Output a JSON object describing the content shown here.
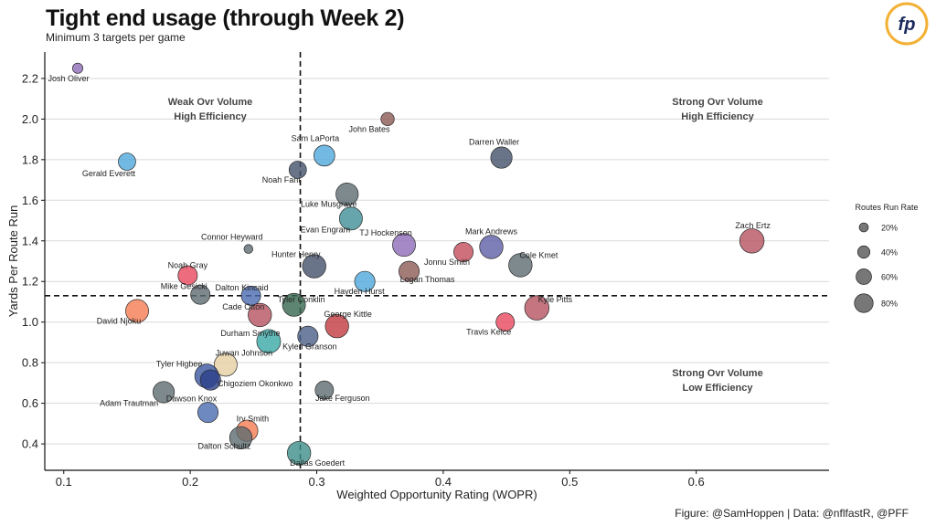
{
  "title": "Tight end usage (through Week 2)",
  "subtitle": "Minimum 3 targets per game",
  "credit": "Figure: @SamHoppen | Data: @nflfastR, @PFF",
  "logo_text": "fp",
  "colors": {
    "logo_ring": "#f2b134",
    "logo_text": "#1b2a5c",
    "grid": "#d9d9d9",
    "axis": "#111111"
  },
  "chart_data": {
    "type": "scatter",
    "xlabel": "Weighted Opportunity Rating (WOPR)",
    "ylabel": "Yards Per Route Run",
    "xlim": [
      0.085,
      0.705
    ],
    "ylim": [
      0.27,
      2.33
    ],
    "xticks": [
      0.1,
      0.2,
      0.3,
      0.4,
      0.5,
      0.6
    ],
    "xtick_labels": [
      "0.1",
      "0.2",
      "0.3",
      "0.4",
      "0.5",
      "0.6"
    ],
    "yticks": [
      0.4,
      0.6,
      0.8,
      1.0,
      1.2,
      1.4,
      1.6,
      1.8,
      2.0,
      2.2
    ],
    "ytick_labels": [
      "0.4",
      "0.6",
      "0.8",
      "1.0",
      "1.2",
      "1.4",
      "1.6",
      "1.8",
      "2.0",
      "2.2"
    ],
    "grid": "horizontal",
    "ref_x": 0.287,
    "ref_y": 1.13,
    "quadrants": [
      {
        "lines": [
          "Weak Ovr Volume",
          "High Efficiency"
        ],
        "position": "top-left"
      },
      {
        "lines": [
          "Strong Ovr Volume",
          "High Efficiency"
        ],
        "position": "top-right"
      },
      {
        "lines": [
          "Strong Ovr Volume",
          "Low Efficiency"
        ],
        "position": "bottom-right"
      }
    ],
    "legend": {
      "title": "Routes Run Rate",
      "position": "right",
      "values": [
        0.2,
        0.4,
        0.6,
        0.8
      ],
      "labels": [
        "20%",
        "40%",
        "60%",
        "80%"
      ]
    },
    "points": [
      {
        "name": "Josh Oliver",
        "x": 0.111,
        "y": 2.25,
        "rr": 0.15,
        "color": "#8e6bb8"
      },
      {
        "name": "Gerald Everett",
        "x": 0.15,
        "y": 1.79,
        "rr": 0.5,
        "color": "#4fa8dc"
      },
      {
        "name": "John Bates",
        "x": 0.356,
        "y": 2.0,
        "rr": 0.3,
        "color": "#8c5a55"
      },
      {
        "name": "Sam LaPorta",
        "x": 0.306,
        "y": 1.82,
        "rr": 0.68,
        "color": "#4fa8dc"
      },
      {
        "name": "Noah Fant",
        "x": 0.285,
        "y": 1.75,
        "rr": 0.5,
        "color": "#44516b"
      },
      {
        "name": "Darren Waller",
        "x": 0.446,
        "y": 1.81,
        "rr": 0.7,
        "color": "#44516b"
      },
      {
        "name": "Luke Musgrave",
        "x": 0.324,
        "y": 1.63,
        "rr": 0.75,
        "color": "#5e6b70"
      },
      {
        "name": "Evan Engram",
        "x": 0.327,
        "y": 1.51,
        "rr": 0.78,
        "color": "#3f8e96"
      },
      {
        "name": "Connor Heyward",
        "x": 0.246,
        "y": 1.36,
        "rr": 0.08,
        "color": "#5e6b70"
      },
      {
        "name": "TJ Hockenson",
        "x": 0.369,
        "y": 1.38,
        "rr": 0.78,
        "color": "#8e6bb8"
      },
      {
        "name": "Mark Andrews",
        "x": 0.438,
        "y": 1.37,
        "rr": 0.8,
        "color": "#5e5ea8"
      },
      {
        "name": "Zach Ertz",
        "x": 0.644,
        "y": 1.4,
        "rr": 0.85,
        "color": "#b5535f"
      },
      {
        "name": "Jonnu Smith",
        "x": 0.416,
        "y": 1.345,
        "rr": 0.6,
        "color": "#c44c5c"
      },
      {
        "name": "Cole Kmet",
        "x": 0.461,
        "y": 1.28,
        "rr": 0.8,
        "color": "#5e6b70"
      },
      {
        "name": "Hunter Henry",
        "x": 0.298,
        "y": 1.275,
        "rr": 0.8,
        "color": "#44516b"
      },
      {
        "name": "Logan Thomas",
        "x": 0.373,
        "y": 1.25,
        "rr": 0.65,
        "color": "#8c5a55"
      },
      {
        "name": "Noah Gray",
        "x": 0.198,
        "y": 1.23,
        "rr": 0.6,
        "color": "#e8495e"
      },
      {
        "name": "Hayden Hurst",
        "x": 0.338,
        "y": 1.2,
        "rr": 0.65,
        "color": "#4fa8dc"
      },
      {
        "name": "Mike Gesicki",
        "x": 0.208,
        "y": 1.135,
        "rr": 0.6,
        "color": "#5e6b70"
      },
      {
        "name": "Dalton Kincaid",
        "x": 0.248,
        "y": 1.13,
        "rr": 0.6,
        "color": "#4a6ab0"
      },
      {
        "name": "Tyler Conklin",
        "x": 0.282,
        "y": 1.085,
        "rr": 0.78,
        "color": "#35664e"
      },
      {
        "name": "Kyle Pitts",
        "x": 0.474,
        "y": 1.07,
        "rr": 0.85,
        "color": "#b5535f"
      },
      {
        "name": "David Njoku",
        "x": 0.158,
        "y": 1.055,
        "rr": 0.78,
        "color": "#f47c51"
      },
      {
        "name": "Cade Otton",
        "x": 0.255,
        "y": 1.035,
        "rr": 0.8,
        "color": "#b5535f"
      },
      {
        "name": "Travis Kelce",
        "x": 0.449,
        "y": 1.0,
        "rr": 0.55,
        "color": "#e8495e"
      },
      {
        "name": "George Kittle",
        "x": 0.316,
        "y": 0.98,
        "rr": 0.8,
        "color": "#c0393f"
      },
      {
        "name": "Kylen Granson",
        "x": 0.293,
        "y": 0.93,
        "rr": 0.65,
        "color": "#4a5f88"
      },
      {
        "name": "Durham Smythe",
        "x": 0.262,
        "y": 0.905,
        "rr": 0.82,
        "color": "#3aa8a6"
      },
      {
        "name": "Juwan Johnson",
        "x": 0.228,
        "y": 0.79,
        "rr": 0.78,
        "color": "#e6cfa3"
      },
      {
        "name": "Tyler Higbee",
        "x": 0.213,
        "y": 0.735,
        "rr": 0.82,
        "color": "#3a56a0"
      },
      {
        "name": "Chigoziem Okonkwo",
        "x": 0.216,
        "y": 0.715,
        "rr": 0.65,
        "color": "#2a3f88"
      },
      {
        "name": "Adam Trautman",
        "x": 0.179,
        "y": 0.655,
        "rr": 0.7,
        "color": "#5e6b70"
      },
      {
        "name": "Jake Ferguson",
        "x": 0.306,
        "y": 0.665,
        "rr": 0.55,
        "color": "#5e6b70"
      },
      {
        "name": "Dawson Knox",
        "x": 0.214,
        "y": 0.555,
        "rr": 0.65,
        "color": "#4a6ab0"
      },
      {
        "name": "Irv Smith",
        "x": 0.245,
        "y": 0.465,
        "rr": 0.7,
        "color": "#f47c51"
      },
      {
        "name": "Dalton Schultz",
        "x": 0.24,
        "y": 0.43,
        "rr": 0.75,
        "color": "#5e6b70"
      },
      {
        "name": "Dallas Goedert",
        "x": 0.286,
        "y": 0.355,
        "rr": 0.8,
        "color": "#3f8e8a"
      }
    ]
  }
}
